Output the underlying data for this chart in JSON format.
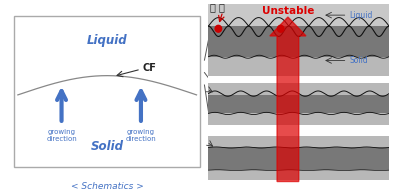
{
  "left_panel": {
    "liquid_label": "Liquid",
    "solid_label": "Solid",
    "cf_label": "CF",
    "growing_label": "growing\ndirection",
    "caption": "< Schematics >",
    "text_color": "#4472c4",
    "arrow_color": "#4472c4",
    "box_edge_color": "#aaaaaa",
    "curve_color": "#888888",
    "cf_arrow_color": "#333333"
  },
  "right_panel": {
    "unstable_label": "Unstable",
    "bubble_label": "기 포",
    "liquid_label": "Liquid",
    "solid_label": "Solid",
    "red_arrow_color": "#dd0000",
    "label_color": "#4472c4",
    "bubble_color": "#cc0000",
    "dark_band": "#787878",
    "light_band": "#c8c8c8",
    "mid_light": "#b8b8b8",
    "bg_color": "#e0e0e0"
  }
}
